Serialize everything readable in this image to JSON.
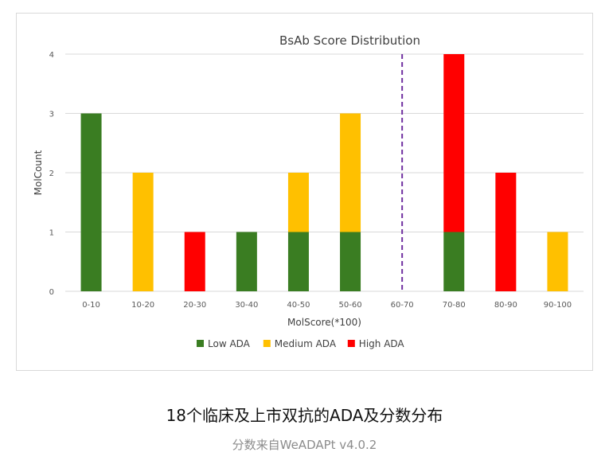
{
  "chart_data": {
    "type": "bar",
    "stacked": true,
    "title": "BsAb Score Distribution",
    "xlabel": "MolScore(*100)",
    "ylabel": "MolCount",
    "ylim": [
      0,
      4
    ],
    "yticks": [
      0,
      1,
      2,
      3,
      4
    ],
    "categories": [
      "0-10",
      "10-20",
      "20-30",
      "30-40",
      "40-50",
      "50-60",
      "60-70",
      "70-80",
      "80-90",
      "90-100"
    ],
    "series": [
      {
        "name": "Low ADA",
        "color": "#3a7d22",
        "values": [
          3,
          0,
          0,
          1,
          1,
          1,
          0,
          1,
          0,
          0
        ]
      },
      {
        "name": "Medium ADA",
        "color": "#ffc000",
        "values": [
          0,
          2,
          0,
          0,
          1,
          2,
          0,
          0,
          0,
          1
        ]
      },
      {
        "name": "High ADA",
        "color": "#ff0000",
        "values": [
          0,
          0,
          1,
          0,
          0,
          0,
          0,
          3,
          2,
          0
        ]
      }
    ],
    "threshold": {
      "x": 60,
      "style": "dashed",
      "color": "#7030a0"
    },
    "legend_position": "bottom"
  },
  "caption": {
    "title": "18个临床及上市双抗的ADA及分数分布",
    "source": "分数来自WeADAPt v4.0.2"
  }
}
